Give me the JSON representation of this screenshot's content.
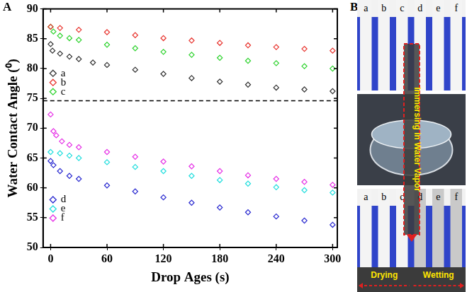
{
  "chart_data": {
    "type": "scatter",
    "panel": "A",
    "x_label": "Drop Ages (s)",
    "y_label": "Water Contact Angle (⁰)",
    "xlim": [
      -8,
      305
    ],
    "xticks": [
      0,
      60,
      120,
      180,
      240,
      300
    ],
    "ylim": [
      50,
      90
    ],
    "yticks": [
      50,
      55,
      60,
      65,
      70,
      75,
      80,
      85,
      90
    ],
    "grid": false,
    "legend": "left",
    "reference_lines": [
      {
        "y": 74.6,
        "line_style": "dashed",
        "color": "#000000"
      }
    ],
    "series": [
      {
        "name": "a",
        "color": "#333333",
        "marker": "diamond",
        "x": [
          0,
          2,
          10,
          20,
          30,
          45,
          60,
          90,
          120,
          150,
          180,
          210,
          240,
          270,
          300
        ],
        "values": [
          84.1,
          83,
          82.5,
          82,
          81.6,
          81,
          80.6,
          79.8,
          79.1,
          78.4,
          77.8,
          77.3,
          76.8,
          76.5,
          76.2
        ]
      },
      {
        "name": "b",
        "color": "#e8322c",
        "marker": "diamond",
        "x": [
          0,
          10,
          30,
          60,
          90,
          120,
          150,
          180,
          210,
          240,
          270,
          300
        ],
        "values": [
          87,
          86.8,
          86.5,
          86.1,
          85.6,
          85.1,
          84.7,
          84.3,
          83.9,
          83.6,
          83.3,
          83
        ]
      },
      {
        "name": "c",
        "color": "#2fd32f",
        "marker": "diamond",
        "x": [
          0,
          3,
          10,
          20,
          30,
          60,
          90,
          120,
          150,
          180,
          210,
          240,
          270,
          300
        ],
        "values": [
          87,
          86.2,
          85.5,
          85.1,
          84.8,
          84,
          83.4,
          82.8,
          82.3,
          81.8,
          81.3,
          80.9,
          80.4,
          80
        ]
      },
      {
        "name": "d",
        "color": "#2a2ad0",
        "marker": "diamond",
        "x": [
          0,
          3,
          10,
          20,
          30,
          60,
          90,
          120,
          150,
          180,
          210,
          240,
          270,
          300
        ],
        "values": [
          64.5,
          63.8,
          62.8,
          62,
          61.5,
          60.4,
          59.4,
          58.4,
          57.5,
          56.7,
          55.9,
          55.2,
          54.5,
          53.8
        ]
      },
      {
        "name": "e",
        "color": "#22dede",
        "marker": "diamond",
        "x": [
          0,
          10,
          20,
          30,
          60,
          90,
          120,
          150,
          180,
          210,
          240,
          270,
          300
        ],
        "values": [
          66,
          65.8,
          65.4,
          65,
          64.3,
          63.5,
          62.8,
          62,
          61.3,
          60.7,
          60.1,
          59.6,
          59.2
        ]
      },
      {
        "name": "f",
        "color": "#e633e6",
        "marker": "diamond",
        "x": [
          0,
          3,
          6,
          12,
          20,
          30,
          60,
          90,
          120,
          150,
          180,
          210,
          240,
          270,
          300
        ],
        "values": [
          72.3,
          69.5,
          68.8,
          67.8,
          67.2,
          66.8,
          66,
          65.2,
          64.4,
          63.6,
          62.8,
          62.1,
          61.5,
          61,
          60.5
        ]
      }
    ]
  },
  "photo_panel": {
    "panel": "B",
    "strip_labels": [
      "a",
      "b",
      "c",
      "d",
      "e",
      "f"
    ],
    "process_label": "Immersing in Water Vapor",
    "left_group_label": "Drying",
    "right_group_label": "Wetting"
  }
}
